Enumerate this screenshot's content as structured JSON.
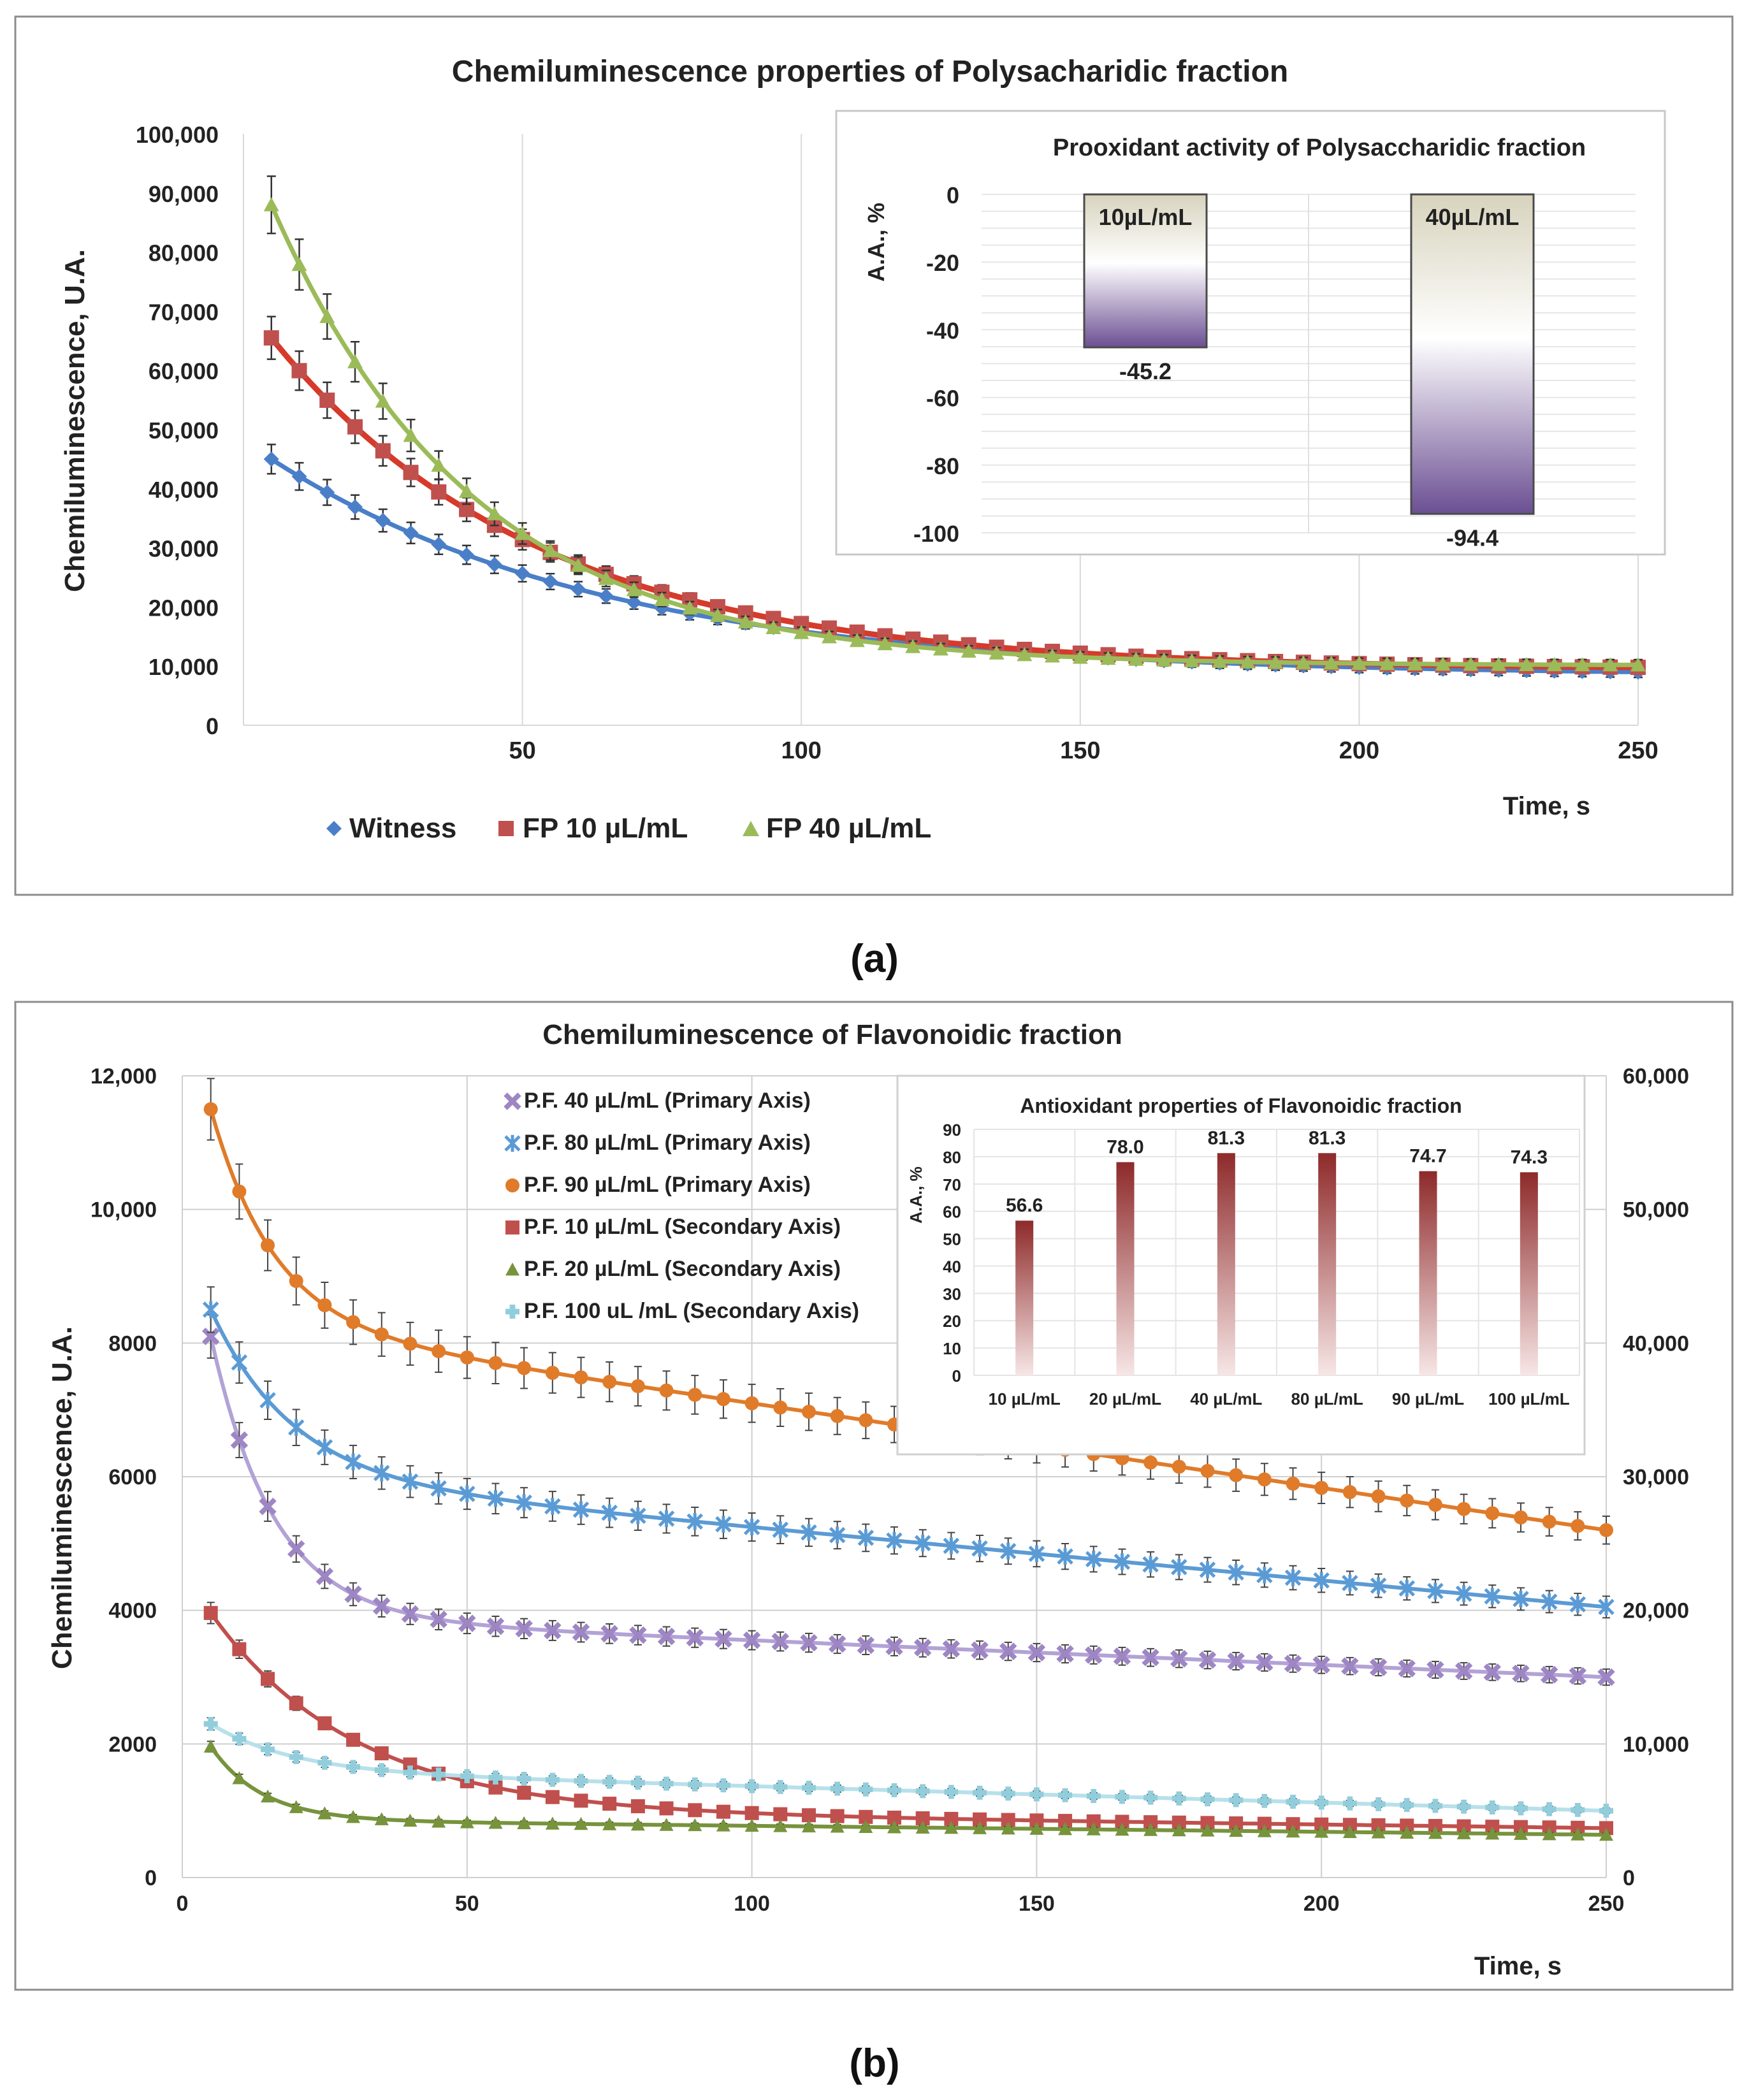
{
  "panel_labels": {
    "a": "(a)",
    "b": "(b)"
  },
  "colors": {
    "witness": "#4a7fc8",
    "fp10": "#d63a2a",
    "fp10_marker": "#c0504d",
    "fp40": "#9bbb59",
    "pf40": "#9e86c4",
    "pf80": "#5b9bd5",
    "pf90": "#e07b2a",
    "pf10": "#c0504d",
    "pf20": "#77933c",
    "pf100": "#92cddc",
    "bar_a_dark": "#6b4f93",
    "bar_a_light": "#d7d3bd",
    "bar_b_dark": "#8e2a2a",
    "bar_b_light": "#f3dede"
  },
  "chart_data": [
    {
      "type": "line",
      "title": "Chemiluminescence properties of Polysacharidic fraction",
      "xlabel": "Time, s",
      "ylabel": "Chemiluminescence, U.A.",
      "xlim": [
        0,
        250
      ],
      "ylim": [
        0,
        100000
      ],
      "x_ticks": [
        "50",
        "100",
        "150",
        "200",
        "250"
      ],
      "y_ticks": [
        "0",
        "10,000",
        "20,000",
        "30,000",
        "40,000",
        "50,000",
        "60,000",
        "70,000",
        "80,000",
        "90,000",
        "100,000"
      ],
      "grid": true,
      "legend_position": "bottom-left",
      "error_bars": true,
      "series": [
        {
          "name": "Witness",
          "marker": "diamond",
          "start": 45000,
          "end": 9000,
          "tau": 60
        },
        {
          "name": "FP 10 µL/mL",
          "marker": "square",
          "start": 65500,
          "end": 9800,
          "tau": 48
        },
        {
          "name": "FP 40 µL/mL",
          "marker": "triangle",
          "start": 88000,
          "end": 10200,
          "tau": 36
        }
      ],
      "x_start": 5,
      "x_step": 5,
      "inset": {
        "type": "bar",
        "title": "Prooxidant activity of Polysaccharidic fraction",
        "ylabel": "A.A., %",
        "ylim": [
          -100,
          0
        ],
        "y_ticks": [
          "0",
          "-20",
          "-40",
          "-60",
          "-80",
          "-100"
        ],
        "categories": [
          "10µL/mL",
          "40µL/mL"
        ],
        "values": [
          -45.2,
          -94.4
        ],
        "value_labels": [
          "-45.2",
          "-94.4"
        ]
      }
    },
    {
      "type": "line",
      "title": "Chemiluminescence of Flavonoidic fraction",
      "xlabel": "Time, s",
      "ylabel": "Chemiluminescence, U.A.",
      "xlim": [
        0,
        250
      ],
      "ylim": [
        0,
        12000
      ],
      "y2lim": [
        0,
        60000
      ],
      "x_ticks": [
        "0",
        "50",
        "100",
        "150",
        "200",
        "250"
      ],
      "y_ticks": [
        "0",
        "2000",
        "4000",
        "6000",
        "8000",
        "10,000",
        "12,000"
      ],
      "y2_ticks": [
        "0",
        "10,000",
        "20,000",
        "30,000",
        "40,000",
        "50,000",
        "60,000"
      ],
      "grid": true,
      "legend_position": "top-center",
      "error_bars": true,
      "x_start": 5,
      "x_step": 5,
      "series": [
        {
          "name": "P.F. 40  µL/mL  (Primary Axis)",
          "axis": "primary",
          "marker": "x",
          "start": 8100,
          "plateau": 3900,
          "tau": 11,
          "drift_end": 3000
        },
        {
          "name": "P.F. 80  µL/mL (Primary Axis)",
          "axis": "primary",
          "marker": "star",
          "start": 8500,
          "plateau": 6000,
          "tau": 14,
          "drift_end": 4050
        },
        {
          "name": "P.F. 90  µL/mL (Primary Axis)",
          "axis": "primary",
          "marker": "circle",
          "start": 11500,
          "plateau": 8300,
          "tau": 11,
          "drift_end": 5200
        },
        {
          "name": "P.F. 10  µL/mL (Secondary Axis)",
          "axis": "secondary",
          "marker": "square",
          "start": 19800,
          "plateau": 5000,
          "tau": 25,
          "drift_end": 3700
        },
        {
          "name": "P.F. 20  µL/mL  (Secondary Axis)",
          "axis": "secondary",
          "marker": "triangle",
          "start": 9800,
          "plateau": 4300,
          "tau": 9,
          "drift_end": 3200
        },
        {
          "name": "P.F. 100 uL /mL (Secondary Axis)",
          "axis": "secondary",
          "marker": "plus",
          "start": 11500,
          "plateau": 8000,
          "tau": 14,
          "drift_end": 5000
        }
      ],
      "inset": {
        "type": "bar",
        "title": "Antioxidant properties of Flavonoidic fraction",
        "ylabel": "A.A., %",
        "ylim": [
          0,
          90
        ],
        "y_ticks": [
          "0",
          "10",
          "20",
          "30",
          "40",
          "50",
          "60",
          "70",
          "80",
          "90"
        ],
        "categories": [
          "10 µL/mL",
          "20 µL/mL",
          "40 µL/mL",
          "80  µL/mL",
          "90 µL/mL",
          "100 µL/mL"
        ],
        "values": [
          56.6,
          78.0,
          81.3,
          81.3,
          74.7,
          74.3
        ],
        "value_labels": [
          "56.6",
          "78.0",
          "81.3",
          "81.3",
          "74.7",
          "74.3"
        ]
      }
    }
  ]
}
